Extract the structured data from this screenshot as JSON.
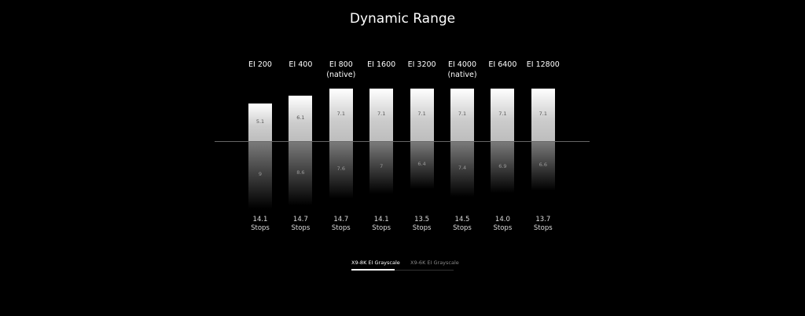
{
  "chart_data": {
    "type": "diverging-bar",
    "title": "Dynamic Range",
    "categories": [
      "EI 200",
      "EI 400",
      "EI 800\n(native)",
      "EI 1600",
      "EI 3200",
      "EI 4000\n(native)",
      "EI 6400",
      "EI 12800"
    ],
    "series": [
      {
        "color": "#ffffff",
        "values": [
          5.1,
          6.1,
          7.1,
          7.1,
          7.1,
          7.1,
          7.1,
          7.1
        ]
      },
      {
        "color": "#7a7a7a",
        "values": [
          9,
          8.6,
          7.6,
          7,
          6.4,
          7.4,
          6.9,
          6.6
        ]
      }
    ],
    "totals": [
      14.1,
      14.7,
      14.7,
      14.1,
      13.5,
      14.5,
      {
        "value": 14,
        "label": "14.0"
      },
      13.7
    ],
    "total_unit": "Stops",
    "tabs": [
      "X9-8K EI Grayscale",
      "X9-6K EI Grayscale"
    ],
    "active_tab": 0
  }
}
